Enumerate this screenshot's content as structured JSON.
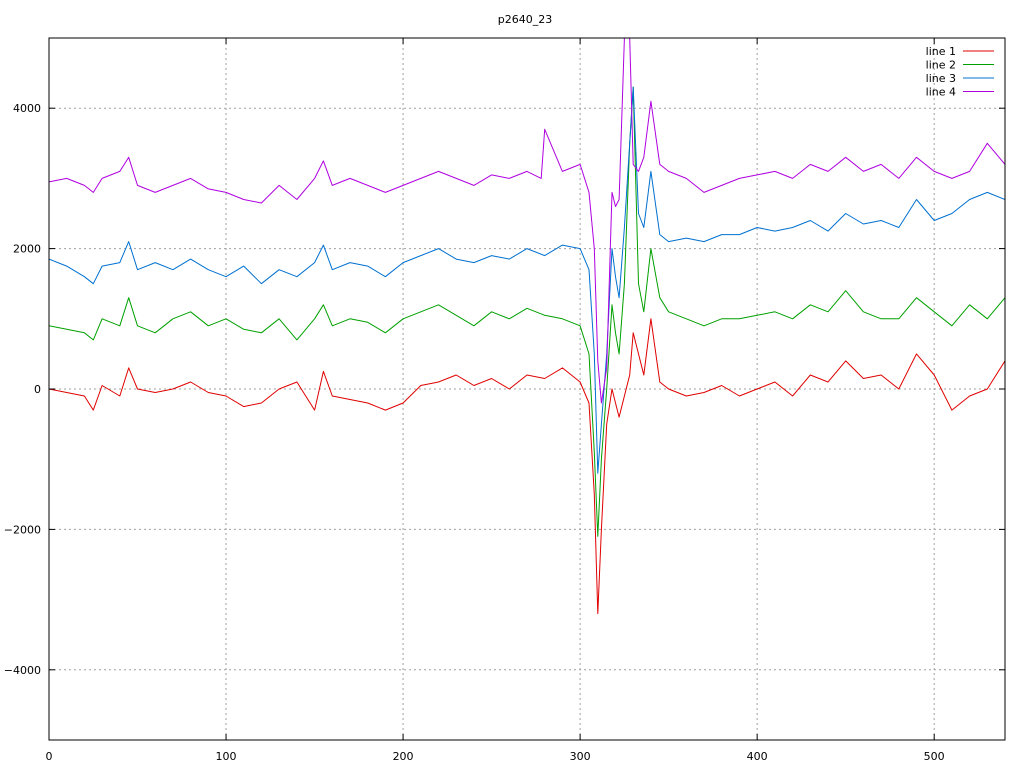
{
  "chart_data": {
    "type": "line",
    "title": "p2640_23",
    "xlabel": "",
    "ylabel": "",
    "xlim": [
      0,
      540
    ],
    "ylim": [
      -5000,
      5000
    ],
    "x_ticks": [
      0,
      100,
      200,
      300,
      400,
      500
    ],
    "y_ticks": [
      -4000,
      -2000,
      0,
      2000,
      4000
    ],
    "x_tick_labels": [
      "0",
      "100",
      "200",
      "300",
      "400",
      "500"
    ],
    "y_tick_labels": [
      "−4000",
      "−2000",
      "0",
      "2000",
      "4000"
    ],
    "grid": true,
    "legend_position": "top-right",
    "series": [
      {
        "name": "line 1",
        "color": "#e00000",
        "x": [
          0,
          10,
          20,
          25,
          30,
          40,
          45,
          50,
          60,
          70,
          80,
          90,
          100,
          110,
          120,
          130,
          140,
          150,
          155,
          160,
          170,
          180,
          190,
          200,
          210,
          220,
          230,
          240,
          250,
          260,
          270,
          280,
          290,
          300,
          305,
          308,
          310,
          312,
          315,
          318,
          320,
          322,
          325,
          328,
          330,
          333,
          336,
          340,
          345,
          350,
          360,
          370,
          380,
          390,
          400,
          410,
          420,
          430,
          440,
          450,
          460,
          470,
          480,
          490,
          500,
          510,
          520,
          530,
          540
        ],
        "y": [
          0,
          -50,
          -100,
          -300,
          50,
          -100,
          300,
          0,
          -50,
          0,
          100,
          -50,
          -100,
          -250,
          -200,
          0,
          100,
          -300,
          250,
          -100,
          -150,
          -200,
          -300,
          -200,
          50,
          100,
          200,
          50,
          150,
          0,
          200,
          150,
          300,
          100,
          -200,
          -1500,
          -3200,
          -2000,
          -500,
          0,
          -200,
          -400,
          -100,
          200,
          800,
          500,
          200,
          1000,
          100,
          0,
          -100,
          -50,
          50,
          -100,
          0,
          100,
          -100,
          200,
          100,
          400,
          150,
          200,
          0,
          500,
          200,
          -300,
          -100,
          0,
          400
        ]
      },
      {
        "name": "line 2",
        "color": "#00a000",
        "x": [
          0,
          10,
          20,
          25,
          30,
          40,
          45,
          50,
          60,
          70,
          80,
          90,
          100,
          110,
          120,
          130,
          140,
          150,
          155,
          160,
          170,
          180,
          190,
          200,
          210,
          220,
          230,
          240,
          250,
          260,
          270,
          280,
          290,
          300,
          305,
          308,
          310,
          312,
          315,
          318,
          320,
          322,
          325,
          328,
          330,
          333,
          336,
          340,
          345,
          350,
          360,
          370,
          380,
          390,
          400,
          410,
          420,
          430,
          440,
          450,
          460,
          470,
          480,
          490,
          500,
          510,
          520,
          530,
          540
        ],
        "y": [
          900,
          850,
          800,
          700,
          1000,
          900,
          1300,
          900,
          800,
          1000,
          1100,
          900,
          1000,
          850,
          800,
          1000,
          700,
          1000,
          1200,
          900,
          1000,
          950,
          800,
          1000,
          1100,
          1200,
          1050,
          900,
          1100,
          1000,
          1150,
          1050,
          1000,
          900,
          500,
          -900,
          -2100,
          -1000,
          0,
          1200,
          800,
          500,
          1500,
          3500,
          4300,
          1500,
          1100,
          2000,
          1300,
          1100,
          1000,
          900,
          1000,
          1000,
          1050,
          1100,
          1000,
          1200,
          1100,
          1400,
          1100,
          1000,
          1000,
          1300,
          1100,
          900,
          1200,
          1000,
          1300
        ]
      },
      {
        "name": "line 3",
        "color": "#0070d0",
        "x": [
          0,
          10,
          20,
          25,
          30,
          40,
          45,
          50,
          60,
          70,
          80,
          90,
          100,
          110,
          120,
          130,
          140,
          150,
          155,
          160,
          170,
          180,
          190,
          200,
          210,
          220,
          230,
          240,
          250,
          260,
          270,
          280,
          290,
          300,
          305,
          308,
          310,
          312,
          315,
          318,
          320,
          322,
          325,
          328,
          330,
          333,
          336,
          340,
          345,
          350,
          360,
          370,
          380,
          390,
          400,
          410,
          420,
          430,
          440,
          450,
          460,
          470,
          480,
          490,
          500,
          510,
          520,
          530,
          540
        ],
        "y": [
          1850,
          1750,
          1600,
          1500,
          1750,
          1800,
          2100,
          1700,
          1800,
          1700,
          1850,
          1700,
          1600,
          1750,
          1500,
          1700,
          1600,
          1800,
          2050,
          1700,
          1800,
          1750,
          1600,
          1800,
          1900,
          2000,
          1850,
          1800,
          1900,
          1850,
          2000,
          1900,
          2050,
          2000,
          1700,
          500,
          -1200,
          -500,
          500,
          2000,
          1600,
          1300,
          2300,
          3500,
          4300,
          2500,
          2300,
          3100,
          2200,
          2100,
          2150,
          2100,
          2200,
          2200,
          2300,
          2250,
          2300,
          2400,
          2250,
          2500,
          2350,
          2400,
          2300,
          2700,
          2400,
          2500,
          2700,
          2800,
          2700
        ]
      },
      {
        "name": "line 4",
        "color": "#b000e0",
        "x": [
          0,
          10,
          20,
          25,
          30,
          40,
          45,
          50,
          60,
          70,
          80,
          90,
          100,
          110,
          120,
          130,
          140,
          150,
          155,
          160,
          170,
          180,
          190,
          200,
          210,
          220,
          230,
          240,
          250,
          260,
          270,
          278,
          280,
          290,
          300,
          305,
          308,
          310,
          312,
          315,
          318,
          320,
          322,
          325,
          328,
          330,
          333,
          336,
          340,
          345,
          350,
          360,
          370,
          380,
          390,
          400,
          410,
          420,
          430,
          440,
          450,
          460,
          470,
          480,
          490,
          500,
          510,
          520,
          530,
          540
        ],
        "y": [
          2950,
          3000,
          2900,
          2800,
          3000,
          3100,
          3300,
          2900,
          2800,
          2900,
          3000,
          2850,
          2800,
          2700,
          2650,
          2900,
          2700,
          3000,
          3250,
          2900,
          3000,
          2900,
          2800,
          2900,
          3000,
          3100,
          3000,
          2900,
          3050,
          3000,
          3100,
          3000,
          3700,
          3100,
          3200,
          2800,
          2000,
          400,
          -200,
          300,
          2800,
          2600,
          2700,
          5000,
          5000,
          3200,
          3100,
          3300,
          4100,
          3200,
          3100,
          3000,
          2800,
          2900,
          3000,
          3050,
          3100,
          3000,
          3200,
          3100,
          3300,
          3100,
          3200,
          3000,
          3300,
          3100,
          3000,
          3100,
          3500,
          3200
        ]
      }
    ]
  }
}
